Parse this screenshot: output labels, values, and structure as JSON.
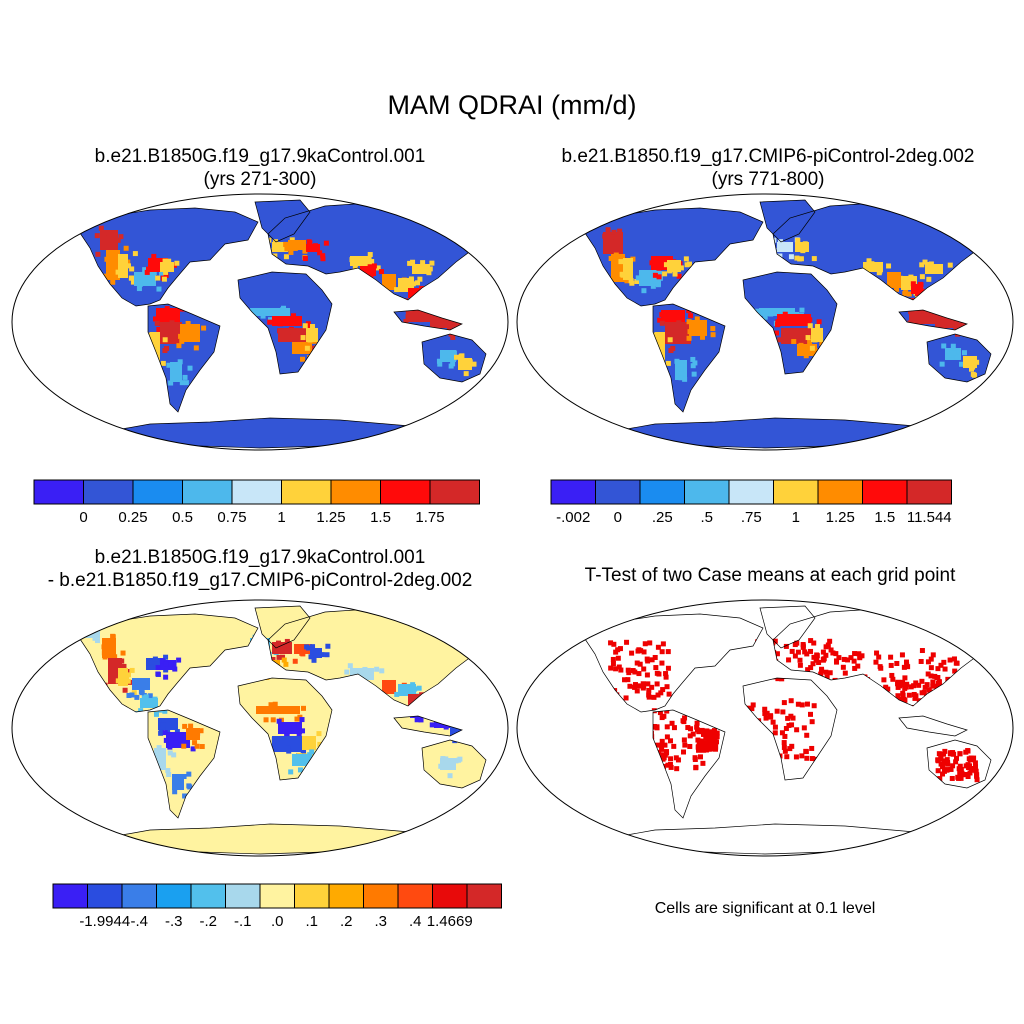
{
  "main_title": "MAM QDRAI (mm/d)",
  "panels": {
    "top_left": {
      "title_line1": "b.e21.B1850G.f19_g17.9kaControl.001",
      "title_line2": "(yrs 271-300)",
      "colorbar": {
        "colors": [
          "#3a1ff5",
          "#3355d6",
          "#1a8cf0",
          "#4db8ec",
          "#c8e6f8",
          "#ffd23a",
          "#ff8c00",
          "#ff0a0a",
          "#d42828"
        ],
        "labels": [
          "0",
          "0.25",
          "0.5",
          "0.75",
          "1",
          "1.25",
          "1.5",
          "1.75"
        ]
      }
    },
    "top_right": {
      "title_line1": "b.e21.B1850.f19_g17.CMIP6-piControl-2deg.002",
      "title_line2": "(yrs 771-800)",
      "colorbar": {
        "colors": [
          "#3a1ff5",
          "#3355d6",
          "#1a8cf0",
          "#4db8ec",
          "#c8e6f8",
          "#ffd23a",
          "#ff8c00",
          "#ff0a0a",
          "#d42828"
        ],
        "labels": [
          "-.002",
          "0",
          ".25",
          ".5",
          ".75",
          "1",
          "1.25",
          "1.5",
          "11.544"
        ]
      }
    },
    "bottom_left": {
      "title_line1": "b.e21.B1850G.f19_g17.9kaControl.001",
      "title_line2": "- b.e21.B1850.f19_g17.CMIP6-piControl-2deg.002",
      "colorbar": {
        "colors": [
          "#3a1ff5",
          "#2a4de0",
          "#3a7ee8",
          "#1aa0f0",
          "#52c0ec",
          "#a8d8ec",
          "#fff3a0",
          "#ffd23a",
          "#ffaa00",
          "#ff7a00",
          "#ff4a10",
          "#e80a0a",
          "#d42828"
        ],
        "labels": [
          "-1.9944",
          "-.4",
          "-.3",
          "-.2",
          "-.1",
          ".0",
          ".1",
          ".2",
          ".3",
          ".4",
          "1.4669"
        ]
      }
    },
    "bottom_right": {
      "title": "T-Test of two Case means at each grid point",
      "note": "Cells are significant at 0.1 level",
      "significance_color": "#ee0000"
    }
  },
  "colors": {
    "land_low": "#3355d6",
    "diff_base": "#fff3a0"
  }
}
